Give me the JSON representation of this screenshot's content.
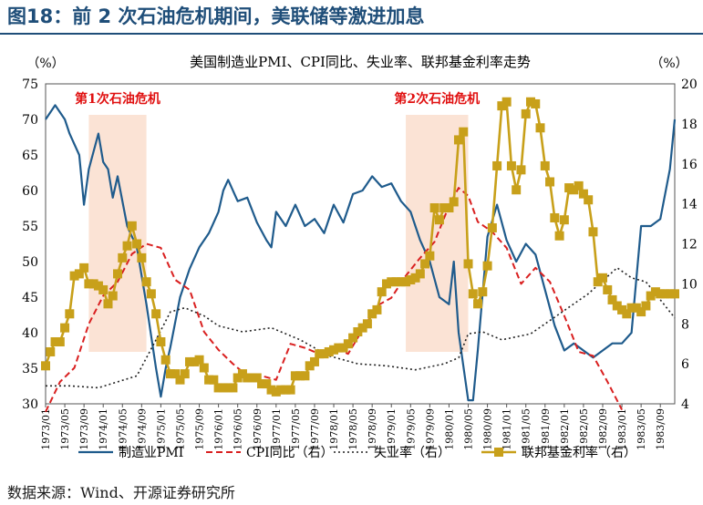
{
  "figure_title": "图18：前 2 次石油危机期间，美联储等激进加息",
  "source_note": "数据来源：Wind、开源证券研究所",
  "colors": {
    "title": "#1f4e79",
    "pmi": "#1f5b8c",
    "cpi": "#d92020",
    "unemployment": "#222222",
    "fed_funds": "#c8a01a",
    "shade": "#fbe3d5",
    "crisis_label": "#e01010"
  },
  "chart_data": {
    "type": "line",
    "title": "美国制造业PMI、CPI同比、失业率、联邦基金利率走势",
    "left_axis": {
      "unit": "（%）",
      "ylim": [
        30,
        75
      ],
      "ticks": [
        30,
        35,
        40,
        45,
        50,
        55,
        60,
        65,
        70,
        75
      ]
    },
    "right_axis": {
      "unit": "（%）",
      "ylim": [
        4,
        20
      ],
      "ticks": [
        4,
        6,
        8,
        10,
        12,
        14,
        16,
        18,
        20
      ]
    },
    "x_tick_labels": [
      "1973/01",
      "1973/05",
      "1973/09",
      "1974/01",
      "1974/05",
      "1974/09",
      "1975/01",
      "1975/05",
      "1975/09",
      "1976/01",
      "1976/05",
      "1976/09",
      "1977/01",
      "1977/05",
      "1977/09",
      "1978/01",
      "1978/05",
      "1978/09",
      "1979/01",
      "1979/05",
      "1979/09",
      "1980/01",
      "1980/05",
      "1980/09",
      "1981/01",
      "1981/05",
      "1981/09",
      "1982/01",
      "1982/05",
      "1982/09",
      "1983/01",
      "1983/05",
      "1983/09"
    ],
    "x_range": [
      "1973/01",
      "1983/12"
    ],
    "shaded_periods": [
      {
        "label": "第1次石油危机",
        "start": "1973/10",
        "end": "1974/10"
      },
      {
        "label": "第2次石油危机",
        "start": "1979/04",
        "end": "1980/05"
      }
    ],
    "legend_position": "bottom",
    "series": [
      {
        "name": "制造业PMI",
        "axis": "left",
        "style": "solid",
        "x": [
          "1973/01",
          "1973/03",
          "1973/05",
          "1973/06",
          "1973/08",
          "1973/09",
          "1973/10",
          "1973/12",
          "1974/01",
          "1974/02",
          "1974/03",
          "1974/04",
          "1974/06",
          "1974/08",
          "1974/10",
          "1974/12",
          "1975/01",
          "1975/02",
          "1975/03",
          "1975/05",
          "1975/07",
          "1975/09",
          "1975/11",
          "1976/01",
          "1976/02",
          "1976/03",
          "1976/05",
          "1976/07",
          "1976/09",
          "1976/11",
          "1976/12",
          "1977/01",
          "1977/03",
          "1977/05",
          "1977/07",
          "1977/09",
          "1977/11",
          "1978/01",
          "1978/03",
          "1978/05",
          "1978/07",
          "1978/09",
          "1978/11",
          "1979/01",
          "1979/03",
          "1979/05",
          "1979/07",
          "1979/09",
          "1979/11",
          "1980/01",
          "1980/02",
          "1980/03",
          "1980/05",
          "1980/06",
          "1980/07",
          "1980/09",
          "1980/11",
          "1981/01",
          "1981/03",
          "1981/05",
          "1981/07",
          "1981/09",
          "1981/11",
          "1982/01",
          "1982/03",
          "1982/05",
          "1982/07",
          "1982/09",
          "1982/11",
          "1983/01",
          "1983/03",
          "1983/05",
          "1983/07",
          "1983/09",
          "1983/11",
          "1983/12"
        ],
        "values": [
          70.0,
          72.0,
          70.0,
          68.0,
          65.0,
          58.0,
          63.0,
          68.0,
          64.0,
          63.0,
          59.0,
          62.0,
          55.0,
          52.0,
          44.0,
          35.0,
          31.0,
          35.0,
          38.0,
          45.0,
          49.0,
          52.0,
          54.0,
          57.0,
          60.0,
          61.5,
          58.5,
          59.0,
          55.5,
          53.0,
          52.0,
          57.0,
          55.0,
          58.0,
          55.0,
          56.0,
          54.0,
          58.0,
          55.5,
          59.5,
          60.0,
          62.0,
          60.5,
          61.0,
          58.5,
          57.0,
          53.0,
          50.0,
          45.0,
          44.0,
          50.0,
          40.0,
          30.5,
          30.5,
          37.5,
          53.5,
          58.0,
          53.0,
          50.0,
          52.5,
          51.0,
          46.0,
          41.0,
          37.5,
          38.5,
          37.5,
          36.5,
          37.5,
          38.5,
          38.5,
          40.0,
          55.0,
          55.0,
          56.0,
          63.0,
          70.0
        ]
      },
      {
        "name": "CPI同比（右）",
        "axis": "right",
        "style": "dashed",
        "x": [
          "1973/01",
          "1973/04",
          "1973/07",
          "1973/10",
          "1974/01",
          "1974/04",
          "1974/07",
          "1974/10",
          "1975/01",
          "1975/04",
          "1975/07",
          "1975/10",
          "1976/01",
          "1976/04",
          "1976/07",
          "1976/10",
          "1977/01",
          "1977/04",
          "1977/07",
          "1977/10",
          "1978/01",
          "1978/04",
          "1978/07",
          "1978/10",
          "1979/01",
          "1979/04",
          "1979/07",
          "1979/10",
          "1980/01",
          "1980/03",
          "1980/05",
          "1980/07",
          "1980/10",
          "1981/01",
          "1981/04",
          "1981/07",
          "1981/10",
          "1982/01",
          "1982/04",
          "1982/07",
          "1982/10",
          "1983/01"
        ],
        "values": [
          3.6,
          5.1,
          5.8,
          8.0,
          9.4,
          10.1,
          11.5,
          12.0,
          11.8,
          10.2,
          9.7,
          7.6,
          6.7,
          6.0,
          5.4,
          5.4,
          5.2,
          7.0,
          6.8,
          6.5,
          6.8,
          6.5,
          7.7,
          8.9,
          9.3,
          10.4,
          11.3,
          12.1,
          13.9,
          14.8,
          14.4,
          13.1,
          12.6,
          11.8,
          10.0,
          10.8,
          10.1,
          8.4,
          6.6,
          6.4,
          5.1,
          3.7
        ]
      },
      {
        "name": "失业率（右）",
        "axis": "right",
        "style": "dotted",
        "x": [
          "1973/01",
          "1973/06",
          "1973/12",
          "1974/04",
          "1974/08",
          "1974/12",
          "1975/03",
          "1975/06",
          "1975/10",
          "1976/01",
          "1976/06",
          "1976/12",
          "1977/06",
          "1977/12",
          "1978/06",
          "1978/12",
          "1979/06",
          "1979/12",
          "1980/03",
          "1980/05",
          "1980/08",
          "1980/12",
          "1981/06",
          "1981/12",
          "1982/06",
          "1982/12",
          "1983/03",
          "1983/06",
          "1983/09",
          "1983/12"
        ],
        "values": [
          4.9,
          4.9,
          4.8,
          5.1,
          5.4,
          7.2,
          8.6,
          8.8,
          8.4,
          7.9,
          7.6,
          7.8,
          7.2,
          6.4,
          6.0,
          5.9,
          5.7,
          6.0,
          6.3,
          7.5,
          7.6,
          7.2,
          7.5,
          8.5,
          9.5,
          10.8,
          10.3,
          10.1,
          9.2,
          8.3
        ]
      },
      {
        "name": "联邦基金利率（右）",
        "axis": "right",
        "style": "solid-square",
        "x": [
          "1973/01",
          "1973/02",
          "1973/03",
          "1973/04",
          "1973/05",
          "1973/06",
          "1973/07",
          "1973/08",
          "1973/09",
          "1973/10",
          "1973/11",
          "1973/12",
          "1974/01",
          "1974/02",
          "1974/03",
          "1974/04",
          "1974/05",
          "1974/06",
          "1974/07",
          "1974/08",
          "1974/09",
          "1974/10",
          "1974/11",
          "1974/12",
          "1975/01",
          "1975/02",
          "1975/03",
          "1975/04",
          "1975/05",
          "1975/06",
          "1975/07",
          "1975/08",
          "1975/09",
          "1975/10",
          "1975/11",
          "1975/12",
          "1976/01",
          "1976/02",
          "1976/03",
          "1976/04",
          "1976/05",
          "1976/06",
          "1976/07",
          "1976/08",
          "1976/09",
          "1976/10",
          "1976/11",
          "1976/12",
          "1977/01",
          "1977/02",
          "1977/03",
          "1977/04",
          "1977/05",
          "1977/06",
          "1977/07",
          "1977/08",
          "1977/09",
          "1977/10",
          "1977/11",
          "1977/12",
          "1978/01",
          "1978/02",
          "1978/03",
          "1978/04",
          "1978/05",
          "1978/06",
          "1978/07",
          "1978/08",
          "1978/09",
          "1978/10",
          "1978/11",
          "1978/12",
          "1979/01",
          "1979/02",
          "1979/03",
          "1979/04",
          "1979/05",
          "1979/06",
          "1979/07",
          "1979/08",
          "1979/09",
          "1979/10",
          "1979/11",
          "1979/12",
          "1980/01",
          "1980/02",
          "1980/03",
          "1980/04",
          "1980/05",
          "1980/06",
          "1980/07",
          "1980/08",
          "1980/09",
          "1980/10",
          "1980/11",
          "1980/12",
          "1981/01",
          "1981/02",
          "1981/03",
          "1981/04",
          "1981/05",
          "1981/06",
          "1981/07",
          "1981/08",
          "1981/09",
          "1981/10",
          "1981/11",
          "1981/12",
          "1982/01",
          "1982/02",
          "1982/03",
          "1982/04",
          "1982/05",
          "1982/06",
          "1982/07",
          "1982/08",
          "1982/09",
          "1982/10",
          "1982/11",
          "1982/12",
          "1983/01",
          "1983/02",
          "1983/03",
          "1983/04",
          "1983/05",
          "1983/06",
          "1983/07",
          "1983/08",
          "1983/09",
          "1983/10",
          "1983/11",
          "1983/12"
        ],
        "values": [
          5.9,
          6.6,
          7.1,
          7.1,
          7.8,
          8.5,
          10.4,
          10.5,
          10.8,
          10.0,
          10.0,
          9.9,
          9.7,
          9.0,
          9.4,
          10.5,
          11.3,
          11.9,
          12.9,
          12.0,
          11.3,
          10.1,
          9.5,
          8.5,
          7.1,
          6.2,
          5.5,
          5.5,
          5.2,
          5.5,
          6.1,
          6.1,
          6.2,
          5.8,
          5.2,
          5.2,
          4.8,
          4.8,
          4.8,
          4.8,
          5.3,
          5.5,
          5.3,
          5.3,
          5.3,
          5.0,
          5.0,
          4.7,
          4.6,
          4.7,
          4.7,
          4.7,
          5.4,
          5.4,
          5.4,
          5.9,
          6.1,
          6.5,
          6.5,
          6.6,
          6.7,
          6.8,
          6.8,
          7.0,
          7.3,
          7.6,
          7.8,
          8.0,
          8.5,
          8.7,
          9.6,
          10.0,
          10.1,
          10.1,
          10.1,
          10.1,
          10.2,
          10.3,
          10.5,
          11.0,
          11.4,
          13.8,
          13.2,
          13.8,
          13.8,
          14.1,
          17.2,
          17.6,
          11.0,
          9.5,
          9.0,
          9.6,
          10.9,
          12.8,
          15.9,
          18.9,
          19.1,
          15.9,
          14.7,
          15.7,
          18.5,
          19.1,
          19.0,
          17.8,
          15.9,
          15.1,
          13.3,
          12.4,
          13.2,
          14.8,
          14.7,
          14.9,
          14.5,
          14.2,
          12.6,
          10.1,
          10.3,
          9.7,
          9.2,
          8.9,
          8.7,
          8.5,
          8.8,
          8.8,
          8.6,
          8.9,
          9.4,
          9.6,
          9.5,
          9.5,
          9.5,
          9.5
        ]
      }
    ]
  }
}
